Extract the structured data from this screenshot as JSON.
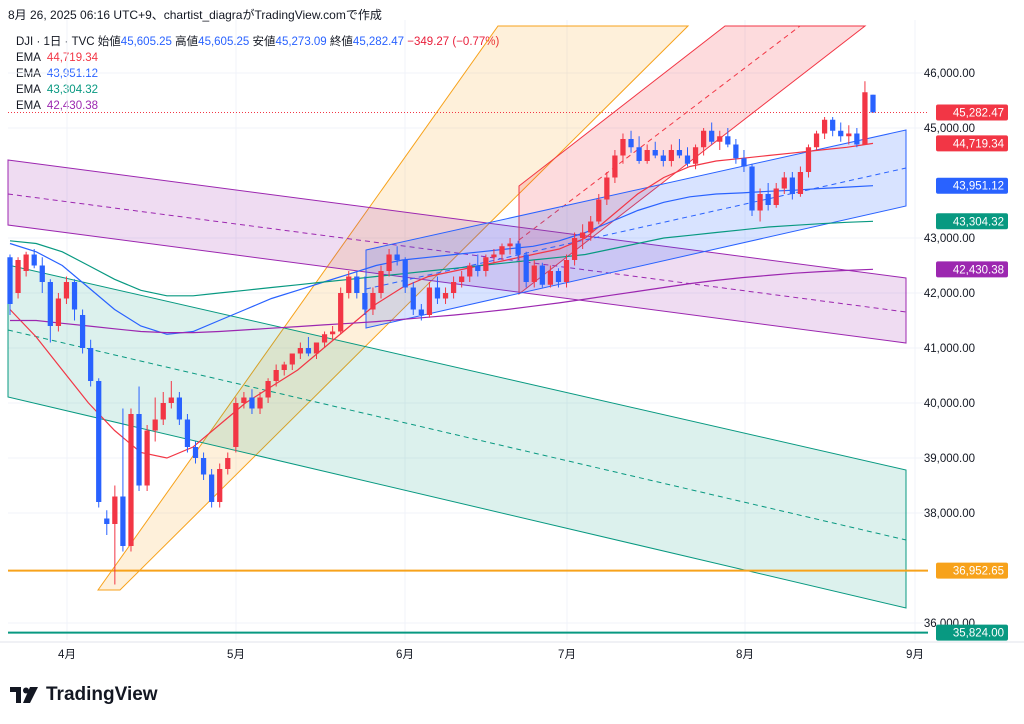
{
  "header": {
    "text": "8月 26, 2025 06:16 UTC+9、chartist_diagraがTradingView.comで作成"
  },
  "legend": {
    "symbol": "DJI · 1日 · TVC",
    "open_label": "始値",
    "open": "45,605.25",
    "high_label": "高値",
    "high": "45,605.25",
    "low_label": "安値",
    "low": "45,273.09",
    "close_label": "終値",
    "close": "45,282.47",
    "change": "−349.27 (−0.77%)",
    "emas": [
      {
        "label": "EMA",
        "value": "44,719.34",
        "color": "#f23645"
      },
      {
        "label": "EMA",
        "value": "43,951.12",
        "color": "#2962ff"
      },
      {
        "label": "EMA",
        "value": "43,304.32",
        "color": "#089981"
      },
      {
        "label": "EMA",
        "value": "42,430.38",
        "color": "#9c27b0"
      }
    ]
  },
  "logo": {
    "text": "TradingView"
  },
  "colors": {
    "up": "#f23645",
    "down": "#2962ff",
    "ema_red": "#f23645",
    "ema_blue": "#2962ff",
    "ema_teal": "#089981",
    "ema_purple": "#9c27b0",
    "orange": "#f7a21b",
    "teal_line": "#089981"
  },
  "chart_data": {
    "type": "candlestick",
    "y_ticks": [
      "46,000.00",
      "45,000.00",
      "43,000.00",
      "42,000.00",
      "41,000.00",
      "40,000.00",
      "39,000.00",
      "38,000.00",
      "36,000.00"
    ],
    "y_tick_values": [
      46000,
      45000,
      43000,
      42000,
      41000,
      40000,
      39000,
      38000,
      36000
    ],
    "x_ticks": [
      "4月",
      "5月",
      "6月",
      "7月",
      "8月",
      "9月"
    ],
    "ylim": [
      35700,
      46500
    ],
    "price_tags": [
      {
        "label": "45,282.47",
        "value": 45282.47,
        "color": "#f23645"
      },
      {
        "label": "44,719.34",
        "value": 44719.34,
        "color": "#f23645"
      },
      {
        "label": "43,951.12",
        "value": 43951.12,
        "color": "#2962ff"
      },
      {
        "label": "43,304.32",
        "value": 43304.32,
        "color": "#089981"
      },
      {
        "label": "42,430.38",
        "value": 42430.38,
        "color": "#9c27b0"
      },
      {
        "label": "36,952.65",
        "value": 36952.65,
        "color": "#f7a21b"
      },
      {
        "label": "35,824.00",
        "value": 35824.0,
        "color": "#089981"
      }
    ],
    "horizontal_lines": [
      {
        "value": 36952.65,
        "color": "#f7a21b"
      },
      {
        "value": 35824.0,
        "color": "#089981"
      }
    ],
    "candles": [
      [
        42650,
        42700,
        41600,
        41800
      ],
      [
        42000,
        42650,
        41900,
        42600
      ],
      [
        42400,
        42750,
        42300,
        42700
      ],
      [
        42700,
        42800,
        42450,
        42500
      ],
      [
        42500,
        42650,
        42000,
        42200
      ],
      [
        42200,
        42250,
        41100,
        41400
      ],
      [
        41400,
        42000,
        41300,
        41900
      ],
      [
        41900,
        42300,
        41800,
        42200
      ],
      [
        42200,
        42250,
        41500,
        41700
      ],
      [
        41600,
        41700,
        40900,
        41000
      ],
      [
        41000,
        41150,
        40300,
        40400
      ],
      [
        40400,
        40450,
        38100,
        38200
      ],
      [
        37900,
        38050,
        37600,
        37800
      ],
      [
        37800,
        38500,
        36700,
        38300
      ],
      [
        38300,
        39900,
        37300,
        37400
      ],
      [
        37400,
        39900,
        37300,
        39800
      ],
      [
        39800,
        40300,
        38400,
        38500
      ],
      [
        38500,
        39600,
        38400,
        39500
      ],
      [
        39500,
        40100,
        39300,
        39700
      ],
      [
        39700,
        40200,
        39600,
        40000
      ],
      [
        40000,
        40400,
        39900,
        40100
      ],
      [
        40100,
        40200,
        39600,
        39700
      ],
      [
        39700,
        39800,
        39100,
        39200
      ],
      [
        39200,
        39300,
        38900,
        39000
      ],
      [
        39000,
        39100,
        38600,
        38700
      ],
      [
        38700,
        38800,
        38100,
        38200
      ],
      [
        38200,
        38900,
        38100,
        38800
      ],
      [
        38800,
        39100,
        38700,
        39000
      ],
      [
        39200,
        40100,
        39100,
        40000
      ],
      [
        40000,
        40200,
        39900,
        40100
      ],
      [
        40100,
        40250,
        39800,
        39900
      ],
      [
        39900,
        40200,
        39800,
        40100
      ],
      [
        40100,
        40450,
        40000,
        40400
      ],
      [
        40400,
        40700,
        40300,
        40600
      ],
      [
        40600,
        40750,
        40500,
        40700
      ],
      [
        40700,
        40900,
        40600,
        40900
      ],
      [
        40900,
        41100,
        40800,
        41000
      ],
      [
        41000,
        41200,
        40850,
        40900
      ],
      [
        40900,
        41100,
        40800,
        41100
      ],
      [
        41100,
        41300,
        41000,
        41250
      ],
      [
        41250,
        41400,
        41150,
        41300
      ],
      [
        41300,
        42100,
        41250,
        42000
      ],
      [
        42000,
        42400,
        41900,
        42300
      ],
      [
        42300,
        42400,
        41900,
        42000
      ],
      [
        42000,
        42300,
        41600,
        41700
      ],
      [
        41700,
        42100,
        41600,
        42000
      ],
      [
        42000,
        42500,
        41900,
        42400
      ],
      [
        42400,
        42800,
        42300,
        42700
      ],
      [
        42700,
        42850,
        42500,
        42600
      ],
      [
        42600,
        42650,
        42000,
        42100
      ],
      [
        42100,
        42200,
        41600,
        41700
      ],
      [
        41700,
        41800,
        41500,
        41600
      ],
      [
        41600,
        42200,
        41550,
        42100
      ],
      [
        42100,
        42300,
        41800,
        41900
      ],
      [
        41900,
        42100,
        41800,
        42000
      ],
      [
        42000,
        42300,
        41900,
        42200
      ],
      [
        42200,
        42400,
        42100,
        42300
      ],
      [
        42300,
        42550,
        42200,
        42500
      ],
      [
        42500,
        42700,
        42300,
        42400
      ],
      [
        42400,
        42700,
        42300,
        42650
      ],
      [
        42650,
        42800,
        42550,
        42700
      ],
      [
        42700,
        42900,
        42600,
        42850
      ],
      [
        42850,
        43000,
        42700,
        42900
      ],
      [
        42900,
        42950,
        42600,
        42700
      ],
      [
        42700,
        42750,
        42100,
        42200
      ],
      [
        42200,
        42600,
        42100,
        42500
      ],
      [
        42500,
        42550,
        42100,
        42150
      ],
      [
        42150,
        42500,
        42100,
        42400
      ],
      [
        42400,
        42450,
        42100,
        42200
      ],
      [
        42200,
        42700,
        42100,
        42600
      ],
      [
        42600,
        43100,
        42500,
        43000
      ],
      [
        43000,
        43250,
        42800,
        43100
      ],
      [
        43100,
        43400,
        42950,
        43300
      ],
      [
        43300,
        43800,
        43250,
        43700
      ],
      [
        43700,
        44200,
        43600,
        44100
      ],
      [
        44100,
        44600,
        44000,
        44500
      ],
      [
        44500,
        44900,
        44350,
        44800
      ],
      [
        44800,
        44950,
        44550,
        44650
      ],
      [
        44650,
        44850,
        44350,
        44400
      ],
      [
        44400,
        44700,
        44350,
        44600
      ],
      [
        44600,
        44750,
        44450,
        44500
      ],
      [
        44500,
        44600,
        44300,
        44400
      ],
      [
        44400,
        44700,
        44300,
        44600
      ],
      [
        44600,
        44800,
        44450,
        44500
      ],
      [
        44500,
        44650,
        44300,
        44350
      ],
      [
        44350,
        44700,
        44250,
        44650
      ],
      [
        44650,
        45000,
        44500,
        44950
      ],
      [
        44950,
        45100,
        44700,
        44750
      ],
      [
        44750,
        44950,
        44600,
        44850
      ],
      [
        44850,
        45000,
        44650,
        44700
      ],
      [
        44700,
        44800,
        44350,
        44450
      ],
      [
        44450,
        44600,
        44200,
        44300
      ],
      [
        44300,
        44350,
        43400,
        43500
      ],
      [
        43500,
        43900,
        43300,
        43800
      ],
      [
        43800,
        44000,
        43500,
        43600
      ],
      [
        43600,
        44000,
        43550,
        43900
      ],
      [
        43900,
        44200,
        43800,
        44100
      ],
      [
        44100,
        44200,
        43700,
        43800
      ],
      [
        43800,
        44300,
        43750,
        44200
      ],
      [
        44200,
        44700,
        44100,
        44650
      ],
      [
        44650,
        44950,
        44600,
        44900
      ],
      [
        44900,
        45200,
        44800,
        45150
      ],
      [
        45150,
        45200,
        44850,
        44950
      ],
      [
        44950,
        45100,
        44750,
        44850
      ],
      [
        44850,
        45050,
        44700,
        44900
      ],
      [
        44900,
        45000,
        44650,
        44700
      ],
      [
        44700,
        45850,
        44700,
        45650
      ],
      [
        45605.25,
        45605.25,
        45273.09,
        45282.47
      ]
    ],
    "ema_series": [
      {
        "name": "EMA",
        "color": "#f23645",
        "start": 0,
        "values": [
          41700,
          41200,
          40600,
          40000,
          39500,
          39100,
          39000,
          39200,
          39600,
          40000,
          40300,
          40600,
          41000,
          41400,
          41800,
          42100,
          42300,
          42400,
          42500,
          42600,
          42700,
          42800,
          43000,
          43400,
          43800,
          44100,
          44300,
          44400,
          44450,
          44500,
          44550,
          44600,
          44650,
          44719.34
        ]
      },
      {
        "name": "EMA",
        "color": "#2962ff",
        "start": 0,
        "values": [
          42900,
          42750,
          42500,
          42100,
          41700,
          41400,
          41250,
          41300,
          41500,
          41700,
          41900,
          42050,
          42200,
          42350,
          42500,
          42600,
          42650,
          42700,
          42750,
          42800,
          42850,
          42950,
          43100,
          43300,
          43500,
          43650,
          43750,
          43800,
          43820,
          43850,
          43870,
          43900,
          43925,
          43951.12
        ]
      },
      {
        "name": "EMA",
        "color": "#089981",
        "start": 0,
        "values": [
          42950,
          42900,
          42750,
          42500,
          42250,
          42050,
          41950,
          41950,
          42000,
          42050,
          42100,
          42150,
          42200,
          42250,
          42300,
          42350,
          42400,
          42450,
          42500,
          42550,
          42600,
          42650,
          42700,
          42800,
          42900,
          43000,
          43050,
          43100,
          43150,
          43200,
          43230,
          43260,
          43285,
          43304.32
        ]
      },
      {
        "name": "EMA",
        "color": "#9c27b0",
        "start": 0,
        "values": [
          41500,
          41500,
          41450,
          41400,
          41350,
          41300,
          41280,
          41280,
          41300,
          41330,
          41360,
          41390,
          41420,
          41450,
          41480,
          41520,
          41560,
          41600,
          41650,
          41700,
          41760,
          41820,
          41890,
          41960,
          42030,
          42100,
          42170,
          42230,
          42280,
          42320,
          42360,
          42390,
          42410,
          42430.38
        ]
      }
    ]
  }
}
